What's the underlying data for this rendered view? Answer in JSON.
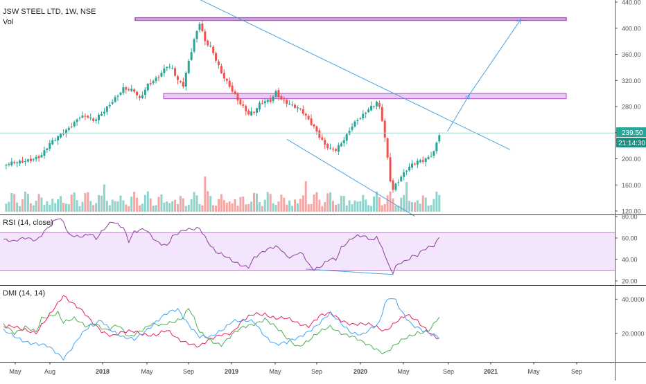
{
  "header": {
    "title": "JSW STEEL LTD, 1W, NSE",
    "vol_label": "Vol"
  },
  "colors": {
    "up": "#26a69a",
    "down": "#ef5350",
    "vol_up": "#8fd3cc",
    "vol_down": "#f4a6a4",
    "trend": "#4aa3df",
    "zone_fill": "#e2b8ee",
    "zone_stroke": "#b04ac8",
    "rsi": "#8e3b9c",
    "rsi_band": "#f3e5fb",
    "dmi_plus": "#4caf50",
    "dmi_minus": "#e91e63",
    "adx": "#42a5f5",
    "price_tag": "#26a69a",
    "timer_tag": "#1e8e7e"
  },
  "price_labels": {
    "last_price": "239.50",
    "countdown": "21:14:30"
  },
  "panes": {
    "rsi_label": "RSI (14, close)",
    "dmi_label": "DMI (14, 14)"
  },
  "axes": {
    "price_ticks": [
      "440.00",
      "400.00",
      "360.00",
      "320.00",
      "280.00",
      "240.00",
      "200.00",
      "160.00",
      "120.00"
    ],
    "rsi_ticks": [
      "80.00",
      "60.00",
      "40.00",
      "20.00"
    ],
    "dmi_ticks": [
      "40.0000",
      "20.0000"
    ],
    "time_labels": [
      {
        "label": "May",
        "bold": false
      },
      {
        "label": "Aug",
        "bold": false
      },
      {
        "label": "2018",
        "bold": true
      },
      {
        "label": "May",
        "bold": false
      },
      {
        "label": "Sep",
        "bold": false
      },
      {
        "label": "2019",
        "bold": true
      },
      {
        "label": "May",
        "bold": false
      },
      {
        "label": "Sep",
        "bold": false
      },
      {
        "label": "2020",
        "bold": true
      },
      {
        "label": "May",
        "bold": false
      },
      {
        "label": "Sep",
        "bold": false
      },
      {
        "label": "2021",
        "bold": true
      },
      {
        "label": "May",
        "bold": false
      },
      {
        "label": "Sep",
        "bold": false
      }
    ]
  },
  "chart_data": {
    "type": "candlestick",
    "price_range": [
      120,
      440
    ],
    "weekly_close_path": [
      [
        0,
        190
      ],
      [
        6,
        194
      ],
      [
        10,
        200
      ],
      [
        14,
        206
      ],
      [
        17,
        222
      ],
      [
        20,
        232
      ],
      [
        24,
        248
      ],
      [
        28,
        266
      ],
      [
        31,
        264
      ],
      [
        33,
        256
      ],
      [
        36,
        268
      ],
      [
        40,
        290
      ],
      [
        44,
        308
      ],
      [
        48,
        302
      ],
      [
        50,
        290
      ],
      [
        53,
        314
      ],
      [
        57,
        328
      ],
      [
        60,
        342
      ],
      [
        62,
        336
      ],
      [
        64,
        318
      ],
      [
        66,
        312
      ],
      [
        68,
        350
      ],
      [
        70,
        384
      ],
      [
        72,
        410
      ],
      [
        74,
        380
      ],
      [
        76,
        370
      ],
      [
        78,
        350
      ],
      [
        80,
        330
      ],
      [
        82,
        318
      ],
      [
        84,
        306
      ],
      [
        86,
        292
      ],
      [
        88,
        280
      ],
      [
        90,
        268
      ],
      [
        92,
        270
      ],
      [
        94,
        282
      ],
      [
        96,
        288
      ],
      [
        98,
        290
      ],
      [
        100,
        304
      ],
      [
        102,
        292
      ],
      [
        104,
        286
      ],
      [
        106,
        280
      ],
      [
        108,
        276
      ],
      [
        110,
        270
      ],
      [
        112,
        260
      ],
      [
        114,
        250
      ],
      [
        116,
        236
      ],
      [
        118,
        222
      ],
      [
        120,
        214
      ],
      [
        122,
        212
      ],
      [
        124,
        222
      ],
      [
        126,
        236
      ],
      [
        128,
        252
      ],
      [
        130,
        262
      ],
      [
        132,
        268
      ],
      [
        134,
        276
      ],
      [
        136,
        280
      ],
      [
        137,
        286
      ],
      [
        138,
        276
      ],
      [
        139,
        258
      ],
      [
        140,
        232
      ],
      [
        141,
        200
      ],
      [
        142,
        168
      ],
      [
        143,
        154
      ],
      [
        144,
        162
      ],
      [
        146,
        174
      ],
      [
        148,
        184
      ],
      [
        150,
        190
      ],
      [
        152,
        194
      ],
      [
        154,
        196
      ],
      [
        156,
        202
      ],
      [
        158,
        212
      ],
      [
        159,
        226
      ],
      [
        160,
        240
      ]
    ],
    "annotations": {
      "resistance_zone_top": [
        412,
        416
      ],
      "resistance_zone_mid": [
        292,
        300
      ],
      "upper_trendline": [
        [
          70,
          448
        ],
        [
          186,
          214
        ]
      ],
      "lower_trendline": [
        [
          104,
          230
        ],
        [
          151,
          112
        ]
      ],
      "projection_arrow": [
        [
          163,
          242
        ],
        [
          171,
          298
        ],
        [
          190,
          414
        ]
      ]
    },
    "rsi_range": [
      20,
      80
    ],
    "rsi_band": [
      30,
      65
    ],
    "rsi_path": [
      [
        0,
        60
      ],
      [
        4,
        57
      ],
      [
        8,
        59
      ],
      [
        12,
        58
      ],
      [
        14,
        64
      ],
      [
        16,
        70
      ],
      [
        18,
        75
      ],
      [
        20,
        78
      ],
      [
        22,
        74
      ],
      [
        24,
        62
      ],
      [
        28,
        62
      ],
      [
        32,
        65
      ],
      [
        34,
        59
      ],
      [
        38,
        70
      ],
      [
        40,
        75
      ],
      [
        44,
        71
      ],
      [
        46,
        58
      ],
      [
        48,
        66
      ],
      [
        52,
        67
      ],
      [
        56,
        57
      ],
      [
        60,
        54
      ],
      [
        62,
        62
      ],
      [
        64,
        64
      ],
      [
        66,
        66
      ],
      [
        68,
        67
      ],
      [
        70,
        68
      ],
      [
        72,
        70
      ],
      [
        74,
        62
      ],
      [
        76,
        54
      ],
      [
        78,
        47
      ],
      [
        80,
        44
      ],
      [
        84,
        38
      ],
      [
        88,
        35
      ],
      [
        90,
        34
      ],
      [
        92,
        42
      ],
      [
        96,
        47
      ],
      [
        100,
        52
      ],
      [
        102,
        50
      ],
      [
        104,
        44
      ],
      [
        106,
        43
      ],
      [
        108,
        46
      ],
      [
        110,
        44
      ],
      [
        112,
        34
      ],
      [
        114,
        30
      ],
      [
        116,
        33
      ],
      [
        118,
        38
      ],
      [
        120,
        42
      ],
      [
        122,
        40
      ],
      [
        124,
        50
      ],
      [
        126,
        54
      ],
      [
        128,
        59
      ],
      [
        130,
        62
      ],
      [
        132,
        63
      ],
      [
        134,
        61
      ],
      [
        136,
        58
      ],
      [
        137,
        63
      ],
      [
        138,
        55
      ],
      [
        140,
        44
      ],
      [
        141,
        36
      ],
      [
        142,
        30
      ],
      [
        143,
        27
      ],
      [
        144,
        33
      ],
      [
        146,
        38
      ],
      [
        148,
        40
      ],
      [
        150,
        44
      ],
      [
        152,
        44
      ],
      [
        154,
        48
      ],
      [
        156,
        50
      ],
      [
        158,
        52
      ],
      [
        159,
        56
      ],
      [
        160,
        61
      ]
    ],
    "rsi_divergence": [
      [
        111,
        31
      ],
      [
        143,
        26
      ]
    ],
    "dmi_range": [
      5,
      45
    ],
    "dmi_plus": [
      [
        0,
        25
      ],
      [
        4,
        21
      ],
      [
        8,
        24
      ],
      [
        12,
        20
      ],
      [
        14,
        28
      ],
      [
        18,
        31
      ],
      [
        20,
        33
      ],
      [
        22,
        27
      ],
      [
        26,
        28
      ],
      [
        30,
        24
      ],
      [
        34,
        26
      ],
      [
        38,
        22
      ],
      [
        42,
        24
      ],
      [
        46,
        18
      ],
      [
        50,
        22
      ],
      [
        54,
        25
      ],
      [
        58,
        24
      ],
      [
        62,
        27
      ],
      [
        66,
        30
      ],
      [
        68,
        35
      ],
      [
        70,
        28
      ],
      [
        72,
        20
      ],
      [
        76,
        16
      ],
      [
        80,
        14
      ],
      [
        84,
        19
      ],
      [
        88,
        23
      ],
      [
        92,
        26
      ],
      [
        96,
        29
      ],
      [
        100,
        23
      ],
      [
        104,
        17
      ],
      [
        108,
        13
      ],
      [
        112,
        16
      ],
      [
        116,
        20
      ],
      [
        120,
        24
      ],
      [
        124,
        21
      ],
      [
        128,
        18
      ],
      [
        132,
        14
      ],
      [
        136,
        12
      ],
      [
        140,
        9
      ],
      [
        144,
        13
      ],
      [
        148,
        17
      ],
      [
        152,
        21
      ],
      [
        156,
        22
      ],
      [
        158,
        25
      ],
      [
        160,
        29
      ]
    ],
    "dmi_minus": [
      [
        0,
        23
      ],
      [
        4,
        24
      ],
      [
        8,
        23
      ],
      [
        12,
        20
      ],
      [
        16,
        28
      ],
      [
        20,
        38
      ],
      [
        22,
        43
      ],
      [
        24,
        40
      ],
      [
        28,
        34
      ],
      [
        32,
        27
      ],
      [
        36,
        22
      ],
      [
        40,
        19
      ],
      [
        44,
        20
      ],
      [
        48,
        21
      ],
      [
        52,
        20
      ],
      [
        56,
        19
      ],
      [
        60,
        21
      ],
      [
        64,
        17
      ],
      [
        68,
        15
      ],
      [
        72,
        12
      ],
      [
        76,
        16
      ],
      [
        80,
        20
      ],
      [
        84,
        21
      ],
      [
        88,
        27
      ],
      [
        92,
        31
      ],
      [
        96,
        32
      ],
      [
        100,
        29
      ],
      [
        104,
        28
      ],
      [
        108,
        26
      ],
      [
        112,
        25
      ],
      [
        116,
        30
      ],
      [
        120,
        31
      ],
      [
        124,
        28
      ],
      [
        128,
        26
      ],
      [
        132,
        25
      ],
      [
        136,
        24
      ],
      [
        140,
        22
      ],
      [
        144,
        27
      ],
      [
        148,
        30
      ],
      [
        152,
        27
      ],
      [
        156,
        22
      ],
      [
        158,
        19
      ],
      [
        160,
        17
      ]
    ],
    "adx": [
      [
        0,
        21
      ],
      [
        4,
        18
      ],
      [
        8,
        16
      ],
      [
        12,
        14
      ],
      [
        16,
        12
      ],
      [
        20,
        8
      ],
      [
        22,
        6
      ],
      [
        24,
        10
      ],
      [
        28,
        18
      ],
      [
        32,
        24
      ],
      [
        36,
        28
      ],
      [
        40,
        22
      ],
      [
        44,
        17
      ],
      [
        48,
        16
      ],
      [
        52,
        22
      ],
      [
        56,
        27
      ],
      [
        60,
        31
      ],
      [
        64,
        34
      ],
      [
        68,
        26
      ],
      [
        72,
        18
      ],
      [
        76,
        17
      ],
      [
        80,
        22
      ],
      [
        84,
        28
      ],
      [
        88,
        27
      ],
      [
        92,
        26
      ],
      [
        96,
        19
      ],
      [
        100,
        14
      ],
      [
        104,
        14
      ],
      [
        108,
        17
      ],
      [
        112,
        22
      ],
      [
        116,
        26
      ],
      [
        120,
        31
      ],
      [
        124,
        26
      ],
      [
        128,
        21
      ],
      [
        132,
        19
      ],
      [
        136,
        23
      ],
      [
        138,
        26
      ],
      [
        140,
        38
      ],
      [
        142,
        42
      ],
      [
        144,
        40
      ],
      [
        146,
        33
      ],
      [
        148,
        28
      ],
      [
        150,
        24
      ],
      [
        154,
        22
      ],
      [
        158,
        20
      ],
      [
        160,
        18
      ]
    ]
  }
}
